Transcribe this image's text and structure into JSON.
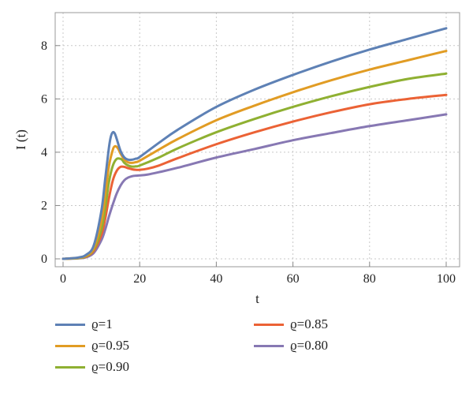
{
  "chart_data": {
    "type": "line",
    "xlabel": "t",
    "ylabel": "I (t)",
    "xlim": [
      0,
      100
    ],
    "ylim": [
      0,
      9
    ],
    "xticks": [
      0,
      20,
      40,
      60,
      80,
      100
    ],
    "yticks": [
      0,
      2,
      4,
      6,
      8
    ],
    "grid": true,
    "legend_position": "bottom",
    "series": [
      {
        "name": "ϱ=1",
        "color": "#5e81b5",
        "x": [
          0,
          4,
          6,
          8,
          10,
          11,
          12,
          12.5,
          13,
          13.5,
          14,
          15,
          16,
          17,
          18,
          19,
          20,
          25,
          30,
          40,
          50,
          60,
          70,
          80,
          90,
          100
        ],
        "y": [
          0.0,
          0.05,
          0.15,
          0.5,
          1.8,
          3.0,
          4.2,
          4.6,
          4.75,
          4.7,
          4.5,
          4.05,
          3.8,
          3.72,
          3.72,
          3.76,
          3.82,
          4.35,
          4.85,
          5.7,
          6.35,
          6.9,
          7.4,
          7.85,
          8.25,
          8.65
        ]
      },
      {
        "name": "ϱ=0.95",
        "color": "#e19c24",
        "x": [
          0,
          4,
          6,
          8,
          10,
          11,
          12,
          13,
          13.5,
          14,
          14.5,
          15,
          16,
          17,
          18,
          19,
          20,
          25,
          30,
          40,
          50,
          60,
          70,
          80,
          90,
          100
        ],
        "y": [
          0.0,
          0.04,
          0.12,
          0.4,
          1.4,
          2.4,
          3.5,
          4.1,
          4.22,
          4.2,
          4.1,
          3.95,
          3.72,
          3.62,
          3.6,
          3.63,
          3.68,
          4.1,
          4.5,
          5.2,
          5.75,
          6.25,
          6.7,
          7.1,
          7.45,
          7.8
        ]
      },
      {
        "name": "ϱ=0.90",
        "color": "#8fb032",
        "x": [
          0,
          4,
          6,
          8,
          10,
          11,
          12,
          13,
          14,
          15,
          15.5,
          16,
          17,
          18,
          19,
          20,
          25,
          30,
          40,
          50,
          60,
          70,
          80,
          90,
          100
        ],
        "y": [
          0.0,
          0.03,
          0.1,
          0.35,
          1.1,
          1.9,
          2.9,
          3.5,
          3.75,
          3.75,
          3.7,
          3.6,
          3.5,
          3.46,
          3.47,
          3.5,
          3.8,
          4.15,
          4.75,
          5.25,
          5.7,
          6.1,
          6.45,
          6.75,
          6.95
        ]
      },
      {
        "name": "ϱ=0.85",
        "color": "#eb6235",
        "x": [
          0,
          4,
          6,
          8,
          10,
          11,
          12,
          13,
          14,
          15,
          16,
          17,
          18,
          19,
          20,
          22,
          25,
          30,
          40,
          50,
          60,
          70,
          80,
          90,
          100
        ],
        "y": [
          0.0,
          0.03,
          0.08,
          0.3,
          0.9,
          1.5,
          2.3,
          2.95,
          3.3,
          3.45,
          3.45,
          3.4,
          3.36,
          3.34,
          3.34,
          3.38,
          3.5,
          3.78,
          4.3,
          4.75,
          5.15,
          5.5,
          5.8,
          6.0,
          6.15
        ]
      },
      {
        "name": "ϱ=0.80",
        "color": "#8778b3",
        "x": [
          0,
          4,
          6,
          8,
          10,
          11,
          12,
          13,
          14,
          15,
          16,
          17,
          18,
          19,
          20,
          22,
          25,
          30,
          40,
          50,
          60,
          70,
          80,
          90,
          100
        ],
        "y": [
          0.0,
          0.02,
          0.06,
          0.22,
          0.7,
          1.1,
          1.6,
          2.05,
          2.45,
          2.75,
          2.95,
          3.05,
          3.1,
          3.12,
          3.13,
          3.16,
          3.25,
          3.42,
          3.8,
          4.12,
          4.45,
          4.72,
          4.98,
          5.2,
          5.42
        ]
      }
    ]
  }
}
